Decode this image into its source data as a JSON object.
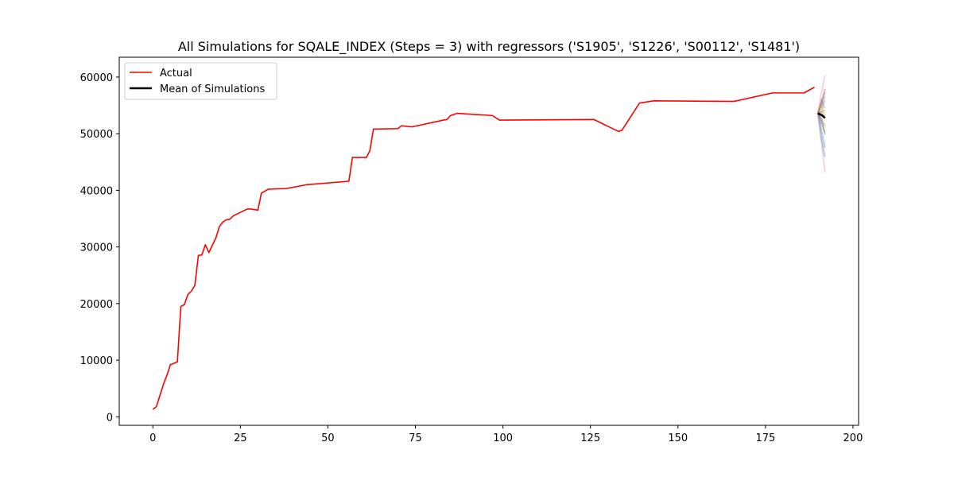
{
  "chart_data": {
    "type": "line",
    "title": "All Simulations for SQALE_INDEX (Steps = 3) with regressors ('S1905', 'S1226', 'S00112', 'S1481')",
    "xlabel": "",
    "ylabel": "",
    "xlim": [
      -9.6,
      201.6
    ],
    "ylim": [
      -1500,
      63500
    ],
    "xticks": [
      0,
      25,
      50,
      75,
      100,
      125,
      150,
      175,
      200
    ],
    "yticks": [
      0,
      10000,
      20000,
      30000,
      40000,
      50000,
      60000
    ],
    "grid": false,
    "legend": {
      "position": "top-left",
      "entries": [
        "Actual",
        "Mean of Simulations"
      ]
    },
    "series": [
      {
        "name": "Actual",
        "color": "#ff0000",
        "points": [
          [
            0,
            1300
          ],
          [
            1,
            1800
          ],
          [
            3,
            5700
          ],
          [
            4,
            7300
          ],
          [
            5,
            9200
          ],
          [
            7,
            9700
          ],
          [
            8,
            19500
          ],
          [
            9,
            19800
          ],
          [
            10,
            21600
          ],
          [
            11,
            22200
          ],
          [
            12,
            23200
          ],
          [
            13,
            28500
          ],
          [
            14,
            28600
          ],
          [
            15,
            30400
          ],
          [
            16,
            29000
          ],
          [
            18,
            31600
          ],
          [
            19,
            33600
          ],
          [
            20,
            34400
          ],
          [
            21,
            34800
          ],
          [
            22,
            34900
          ],
          [
            23,
            35500
          ],
          [
            25,
            36100
          ],
          [
            27,
            36700
          ],
          [
            28,
            36700
          ],
          [
            30,
            36500
          ],
          [
            31,
            39500
          ],
          [
            33,
            40200
          ],
          [
            38,
            40300
          ],
          [
            44,
            41000
          ],
          [
            56,
            41600
          ],
          [
            57,
            45800
          ],
          [
            61,
            45800
          ],
          [
            62,
            47000
          ],
          [
            63,
            50800
          ],
          [
            70,
            50900
          ],
          [
            71,
            51400
          ],
          [
            74,
            51200
          ],
          [
            83,
            52400
          ],
          [
            84,
            52500
          ],
          [
            85,
            53200
          ],
          [
            87,
            53600
          ],
          [
            97,
            53200
          ],
          [
            99,
            52400
          ],
          [
            126,
            52500
          ],
          [
            133,
            50400
          ],
          [
            134,
            50600
          ],
          [
            139,
            55400
          ],
          [
            143,
            55800
          ],
          [
            166,
            55700
          ],
          [
            177,
            57200
          ],
          [
            186,
            57200
          ],
          [
            189,
            58200
          ]
        ]
      },
      {
        "name": "Mean of Simulations",
        "color": "#000000",
        "points": [
          [
            190,
            53600
          ],
          [
            191,
            53300
          ],
          [
            192,
            52800
          ]
        ]
      }
    ],
    "simulations": [
      {
        "color": "#1f77b4",
        "values": [
          53600,
          50500,
          47500
        ]
      },
      {
        "color": "#ff7f0e",
        "values": [
          53600,
          54800,
          55800
        ]
      },
      {
        "color": "#2ca02c",
        "values": [
          53600,
          55600,
          57300
        ]
      },
      {
        "color": "#d62728",
        "values": [
          53600,
          51800,
          50200
        ]
      },
      {
        "color": "#9467bd",
        "values": [
          53600,
          56000,
          54500
        ]
      },
      {
        "color": "#8c564b",
        "values": [
          53600,
          52500,
          51300
        ]
      },
      {
        "color": "#e377c2",
        "values": [
          53600,
          57200,
          60300
        ]
      },
      {
        "color": "#7f7f7f",
        "values": [
          53600,
          53900,
          52600
        ]
      },
      {
        "color": "#bcbd22",
        "values": [
          53600,
          55200,
          53100
        ]
      },
      {
        "color": "#17becf",
        "values": [
          53600,
          54000,
          56600
        ]
      },
      {
        "color": "#1f77b4",
        "values": [
          53600,
          49000,
          45900
        ]
      },
      {
        "color": "#e377c2",
        "values": [
          53600,
          48500,
          43200
        ]
      },
      {
        "color": "#2ca02c",
        "values": [
          53600,
          52600,
          49800
        ]
      },
      {
        "color": "#ff7f0e",
        "values": [
          53600,
          53800,
          54200
        ]
      },
      {
        "color": "#d62728",
        "values": [
          53600,
          55300,
          57900
        ]
      }
    ]
  }
}
